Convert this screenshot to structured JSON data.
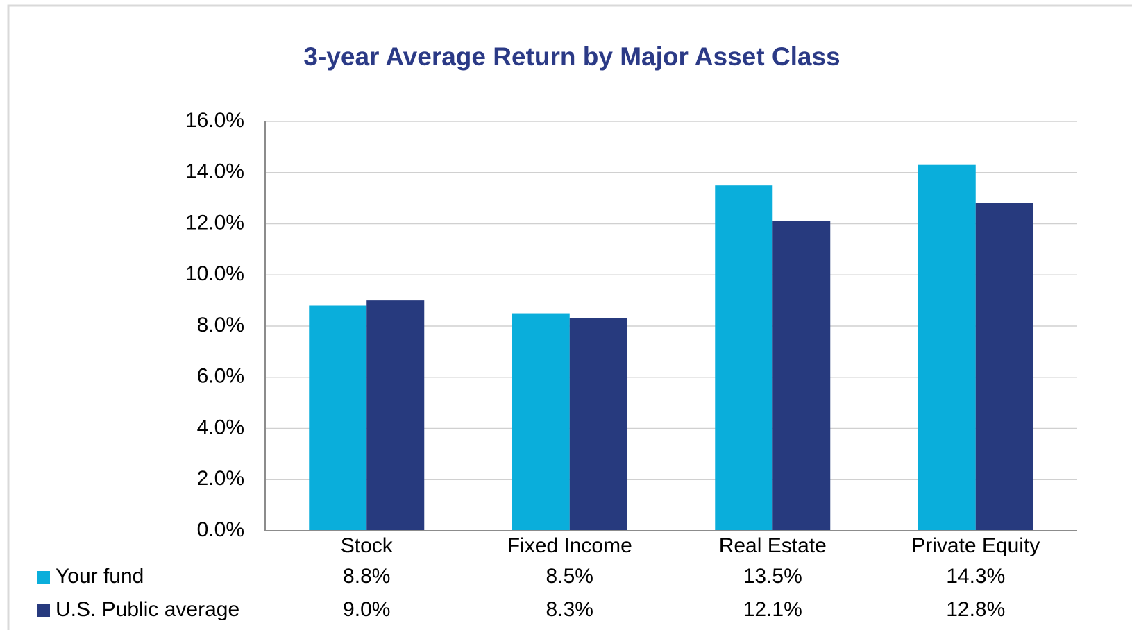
{
  "chart_data": {
    "type": "bar",
    "title": "3-year Average Return by Major Asset Class",
    "categories": [
      "Stock",
      "Fixed Income",
      "Real Estate",
      "Private Equity"
    ],
    "series": [
      {
        "name": "Your fund",
        "color": "#0aaedb",
        "values": [
          8.8,
          8.5,
          13.5,
          14.3
        ],
        "value_labels": [
          "8.8%",
          "8.5%",
          "13.5%",
          "14.3%"
        ]
      },
      {
        "name": "U.S. Public average",
        "color": "#273a7e",
        "values": [
          9.0,
          8.3,
          12.1,
          12.8
        ],
        "value_labels": [
          "9.0%",
          "8.3%",
          "12.1%",
          "12.8%"
        ]
      }
    ],
    "ylim": [
      0,
      16
    ],
    "yticks": [
      {
        "value": 0,
        "label": "0.0%"
      },
      {
        "value": 2,
        "label": "2.0%"
      },
      {
        "value": 4,
        "label": "4.0%"
      },
      {
        "value": 6,
        "label": "6.0%"
      },
      {
        "value": 8,
        "label": "8.0%"
      },
      {
        "value": 10,
        "label": "10.0%"
      },
      {
        "value": 12,
        "label": "12.0%"
      },
      {
        "value": 14,
        "label": "14.0%"
      },
      {
        "value": 16,
        "label": "16.0%"
      }
    ],
    "grid": true
  }
}
